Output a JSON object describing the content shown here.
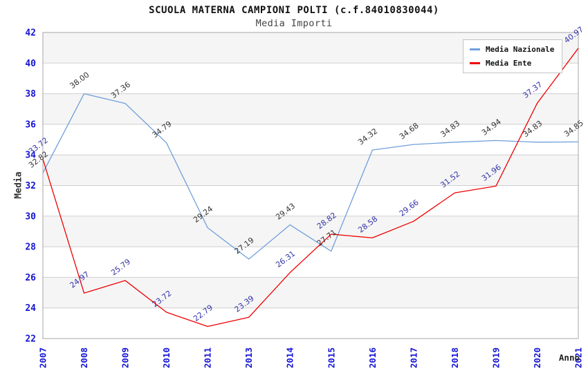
{
  "header": {
    "title": "SCUOLA MATERNA CAMPIONI POLTI (c.f.84010830044)",
    "subtitle": "Media Importi"
  },
  "chart_data": {
    "type": "line",
    "title": "SCUOLA MATERNA CAMPIONI POLTI (c.f.84010830044)",
    "subtitle": "Media Importi",
    "xlabel": "Anno",
    "ylabel": "Media",
    "ylim": [
      22,
      42
    ],
    "ytick_step": 2,
    "grid": "horizontal-bands",
    "legend_position": "top-right",
    "categories": [
      "2007",
      "2008",
      "2009",
      "2010",
      "2011",
      "2013",
      "2014",
      "2015",
      "2016",
      "2017",
      "2018",
      "2019",
      "2020",
      "2021"
    ],
    "series": [
      {
        "name": "Media Nazionale",
        "color": "#6f9fdb",
        "label_color": "#333333",
        "values": [
          32.82,
          38.0,
          37.36,
          34.79,
          29.24,
          27.19,
          29.43,
          27.71,
          34.32,
          34.68,
          34.83,
          34.94,
          34.83,
          34.85
        ]
      },
      {
        "name": "Media Ente",
        "color": "#ee0000",
        "label_color": "#3333aa",
        "values": [
          33.72,
          24.97,
          25.79,
          23.72,
          22.79,
          23.39,
          26.31,
          28.82,
          28.58,
          29.66,
          31.52,
          31.96,
          37.37,
          40.97
        ]
      }
    ],
    "colors": {
      "tick_label": "#1414d4",
      "band_gray": "#f5f5f5",
      "band_white": "#ffffff",
      "grid_line": "#cfcfcf",
      "plot_border": "#a6a6a6"
    }
  }
}
